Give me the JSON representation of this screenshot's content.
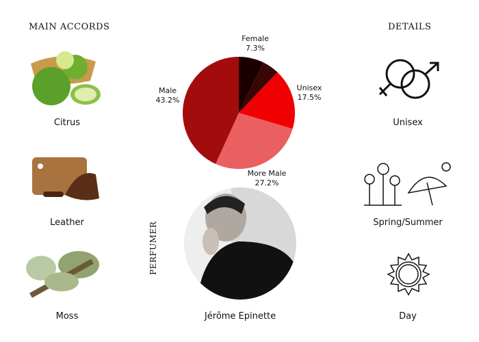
{
  "main_accords": {
    "title": "MAIN ACCORDS",
    "items": [
      {
        "label": "Citrus",
        "icon": "bergamot-image"
      },
      {
        "label": "Leather",
        "icon": "leather-image"
      },
      {
        "label": "Moss",
        "icon": "moss-image"
      }
    ]
  },
  "details": {
    "title": "DETAILS",
    "items": [
      {
        "label": "Unisex",
        "icon": "gender-icon"
      },
      {
        "label": "Spring/Summer",
        "icon": "season-icon"
      },
      {
        "label": "Day",
        "icon": "sun-icon"
      }
    ]
  },
  "perfumer": {
    "title": "PERFUMER",
    "name": "Jérôme Epinette"
  },
  "chart_data": {
    "type": "pie",
    "slices": [
      {
        "name": "Female",
        "value": 7.3,
        "label": "7.3%",
        "color": "#1c0000"
      },
      {
        "name": "",
        "value": 4.8,
        "label": "",
        "color": "#3a0505"
      },
      {
        "name": "Unisex",
        "value": 17.5,
        "label": "17.5%",
        "color": "#f00000"
      },
      {
        "name": "More Male",
        "value": 27.2,
        "label": "27.2%",
        "color": "#ea5f5f"
      },
      {
        "name": "Male",
        "value": 43.2,
        "label": "43.2%",
        "color": "#a30c0c"
      }
    ]
  }
}
